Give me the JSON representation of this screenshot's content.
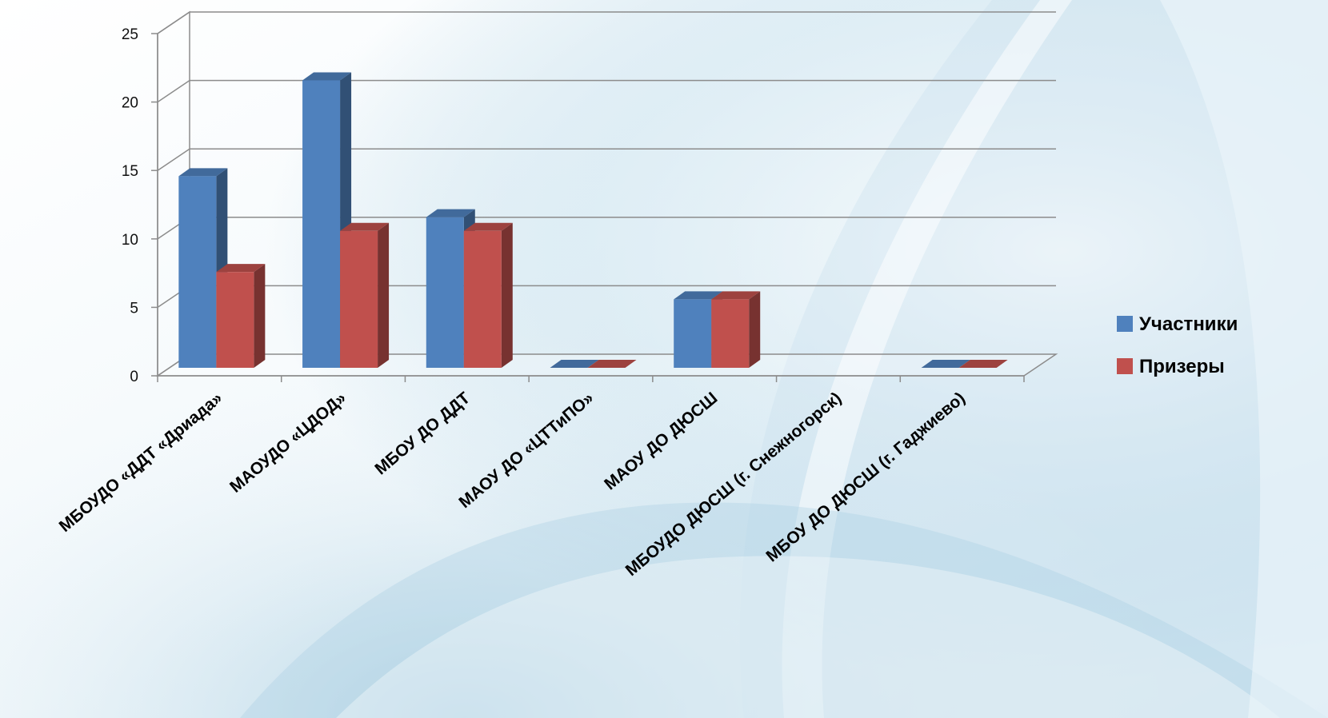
{
  "chart_data": {
    "type": "bar",
    "categories": [
      "МБОУДО «ДДТ «Дриада»",
      "МАОУДО «ЦДОД»",
      "МБОУ ДО ДДТ",
      "МАОУ ДО «ЦТТиПО»",
      "МАОУ ДО ДЮСШ",
      "МБОУДО ДЮСШ (г. Снежногорск)",
      "МБОУ ДО ДЮСШ (г. Гаджиево)"
    ],
    "series": [
      {
        "name": "Участники",
        "values": [
          14,
          21,
          11,
          0,
          5,
          null,
          0
        ],
        "color": "#4f81bd"
      },
      {
        "name": "Призеры",
        "values": [
          7,
          10,
          10,
          0,
          5,
          null,
          0
        ],
        "color": "#c0504d"
      }
    ],
    "yticks": [
      "0",
      "5",
      "10",
      "15",
      "20",
      "25"
    ],
    "ylim": [
      0,
      25
    ],
    "grid": true,
    "legend": "right",
    "style": "3d-column"
  }
}
